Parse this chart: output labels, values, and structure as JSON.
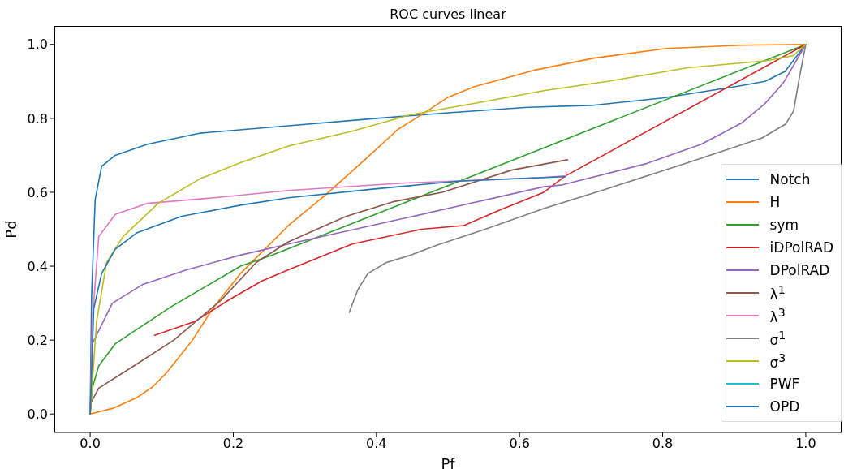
{
  "chart_data": {
    "type": "line",
    "title": "ROC curves linear",
    "xlabel": "Pf",
    "ylabel": "Pd",
    "xlim": [
      -0.05,
      1.05
    ],
    "ylim": [
      -0.05,
      1.05
    ],
    "xticks": [
      {
        "value": 0,
        "label": "0.0"
      },
      {
        "value": 0.2,
        "label": "0.2"
      },
      {
        "value": 0.4,
        "label": "0.4"
      },
      {
        "value": 0.6,
        "label": "0.6"
      },
      {
        "value": 0.8,
        "label": "0.8"
      },
      {
        "value": 1,
        "label": "1.0"
      }
    ],
    "yticks": [
      {
        "value": 0,
        "label": "0.0"
      },
      {
        "value": 0.2,
        "label": "0.2"
      },
      {
        "value": 0.4,
        "label": "0.4"
      },
      {
        "value": 0.6,
        "label": "0.6"
      },
      {
        "value": 0.8,
        "label": "0.8"
      },
      {
        "value": 1,
        "label": "1.0"
      }
    ],
    "grid": false,
    "legend": "bottom right",
    "marker": "none",
    "line_style": "solid",
    "series": [
      {
        "name": "Notch",
        "color": "#1f77b4",
        "x": [
          0,
          0.002,
          0.007,
          0.016,
          0.035,
          0.08,
          0.154,
          0.277,
          0.4,
          0.5,
          0.612,
          0.7,
          0.8,
          0.902,
          0.943,
          0.971,
          1
        ],
        "values": [
          0,
          0.32,
          0.58,
          0.67,
          0.7,
          0.73,
          0.76,
          0.78,
          0.8,
          0.815,
          0.83,
          0.835,
          0.855,
          0.886,
          0.9,
          0.927,
          1
        ]
      },
      {
        "name": "H",
        "color": "#ff7f0e",
        "x": [
          0,
          0.031,
          0.065,
          0.087,
          0.106,
          0.143,
          0.173,
          0.21,
          0.277,
          0.329,
          0.385,
          0.43,
          0.463,
          0.5,
          0.537,
          0.62,
          0.704,
          0.805,
          0.91,
          1
        ],
        "values": [
          0,
          0.015,
          0.044,
          0.073,
          0.11,
          0.2,
          0.29,
          0.38,
          0.51,
          0.593,
          0.69,
          0.77,
          0.81,
          0.857,
          0.886,
          0.93,
          0.963,
          0.989,
          0.998,
          1
        ]
      },
      {
        "name": "sym",
        "color": "#2ca02c",
        "x": [
          0,
          0.003,
          0.012,
          0.035,
          0.113,
          0.21,
          0.254,
          0.634,
          1
        ],
        "values": [
          0,
          0.07,
          0.13,
          0.19,
          0.29,
          0.4,
          0.43,
          0.72,
          1
        ]
      },
      {
        "name": "iDPolRAD",
        "color": "#d62728",
        "x": [
          0.09,
          0.146,
          0.195,
          0.24,
          0.277,
          0.366,
          0.463,
          0.522,
          0.57,
          0.634,
          0.664,
          1
        ],
        "values": [
          0.213,
          0.25,
          0.31,
          0.36,
          0.39,
          0.46,
          0.5,
          0.51,
          0.55,
          0.6,
          0.644,
          1
        ]
      },
      {
        "name": "DPolRAD",
        "color": "#9467bd",
        "x": [
          0,
          0.003,
          0.031,
          0.073,
          0.135,
          0.21,
          0.277,
          0.44,
          0.634,
          0.66,
          0.776,
          0.854,
          0.91,
          0.943,
          0.969,
          1
        ],
        "values": [
          0,
          0.19,
          0.3,
          0.35,
          0.39,
          0.43,
          0.46,
          0.53,
          0.615,
          0.62,
          0.677,
          0.73,
          0.787,
          0.84,
          0.897,
          1
        ]
      },
      {
        "name": "λ$^{1}$",
        "color": "#8c564b",
        "x": [
          0,
          0.001,
          0.012,
          0.061,
          0.117,
          0.184,
          0.232,
          0.277,
          0.358,
          0.425,
          0.492,
          0.589,
          0.667
        ],
        "values": [
          0,
          0.03,
          0.07,
          0.13,
          0.2,
          0.31,
          0.41,
          0.466,
          0.535,
          0.575,
          0.6,
          0.66,
          0.688
        ]
      },
      {
        "name": "λ$^{3}$",
        "color": "#e377c2",
        "x": [
          0,
          0.003,
          0.012,
          0.035,
          0.08,
          0.173,
          0.277,
          0.44,
          0.634,
          0.665,
          0.665
        ],
        "values": [
          0,
          0.25,
          0.48,
          0.54,
          0.57,
          0.585,
          0.605,
          0.625,
          0.64,
          0.645,
          0.655
        ]
      },
      {
        "name": "σ$^{1}$",
        "color": "#7f7f7f",
        "x": [
          0.362,
          0.374,
          0.388,
          0.414,
          0.448,
          0.485,
          0.552,
          0.634,
          0.723,
          0.835,
          0.939,
          0.972,
          0.983,
          0.991,
          1
        ],
        "values": [
          0.275,
          0.336,
          0.38,
          0.41,
          0.43,
          0.457,
          0.5,
          0.556,
          0.61,
          0.68,
          0.747,
          0.785,
          0.82,
          0.91,
          1
        ]
      },
      {
        "name": "σ$^{3}$",
        "color": "#bcbd22",
        "x": [
          0,
          0.009,
          0.023,
          0.046,
          0.095,
          0.154,
          0.21,
          0.277,
          0.366,
          0.448,
          0.552,
          0.634,
          0.723,
          0.835,
          0.946,
          0.983,
          1
        ],
        "values": [
          0,
          0.25,
          0.41,
          0.48,
          0.57,
          0.637,
          0.68,
          0.725,
          0.765,
          0.81,
          0.846,
          0.875,
          0.9,
          0.937,
          0.956,
          0.97,
          1
        ]
      },
      {
        "name": "PWF",
        "color": "#17becf"
      },
      {
        "name": "OPD",
        "color": "#1f77b4",
        "x": [
          0,
          0.005,
          0.016,
          0.035,
          0.065,
          0.128,
          0.21,
          0.277,
          0.403,
          0.515,
          0.634,
          0.664
        ],
        "values": [
          0,
          0.285,
          0.38,
          0.446,
          0.49,
          0.535,
          0.565,
          0.585,
          0.61,
          0.63,
          0.64,
          0.642
        ]
      }
    ]
  }
}
